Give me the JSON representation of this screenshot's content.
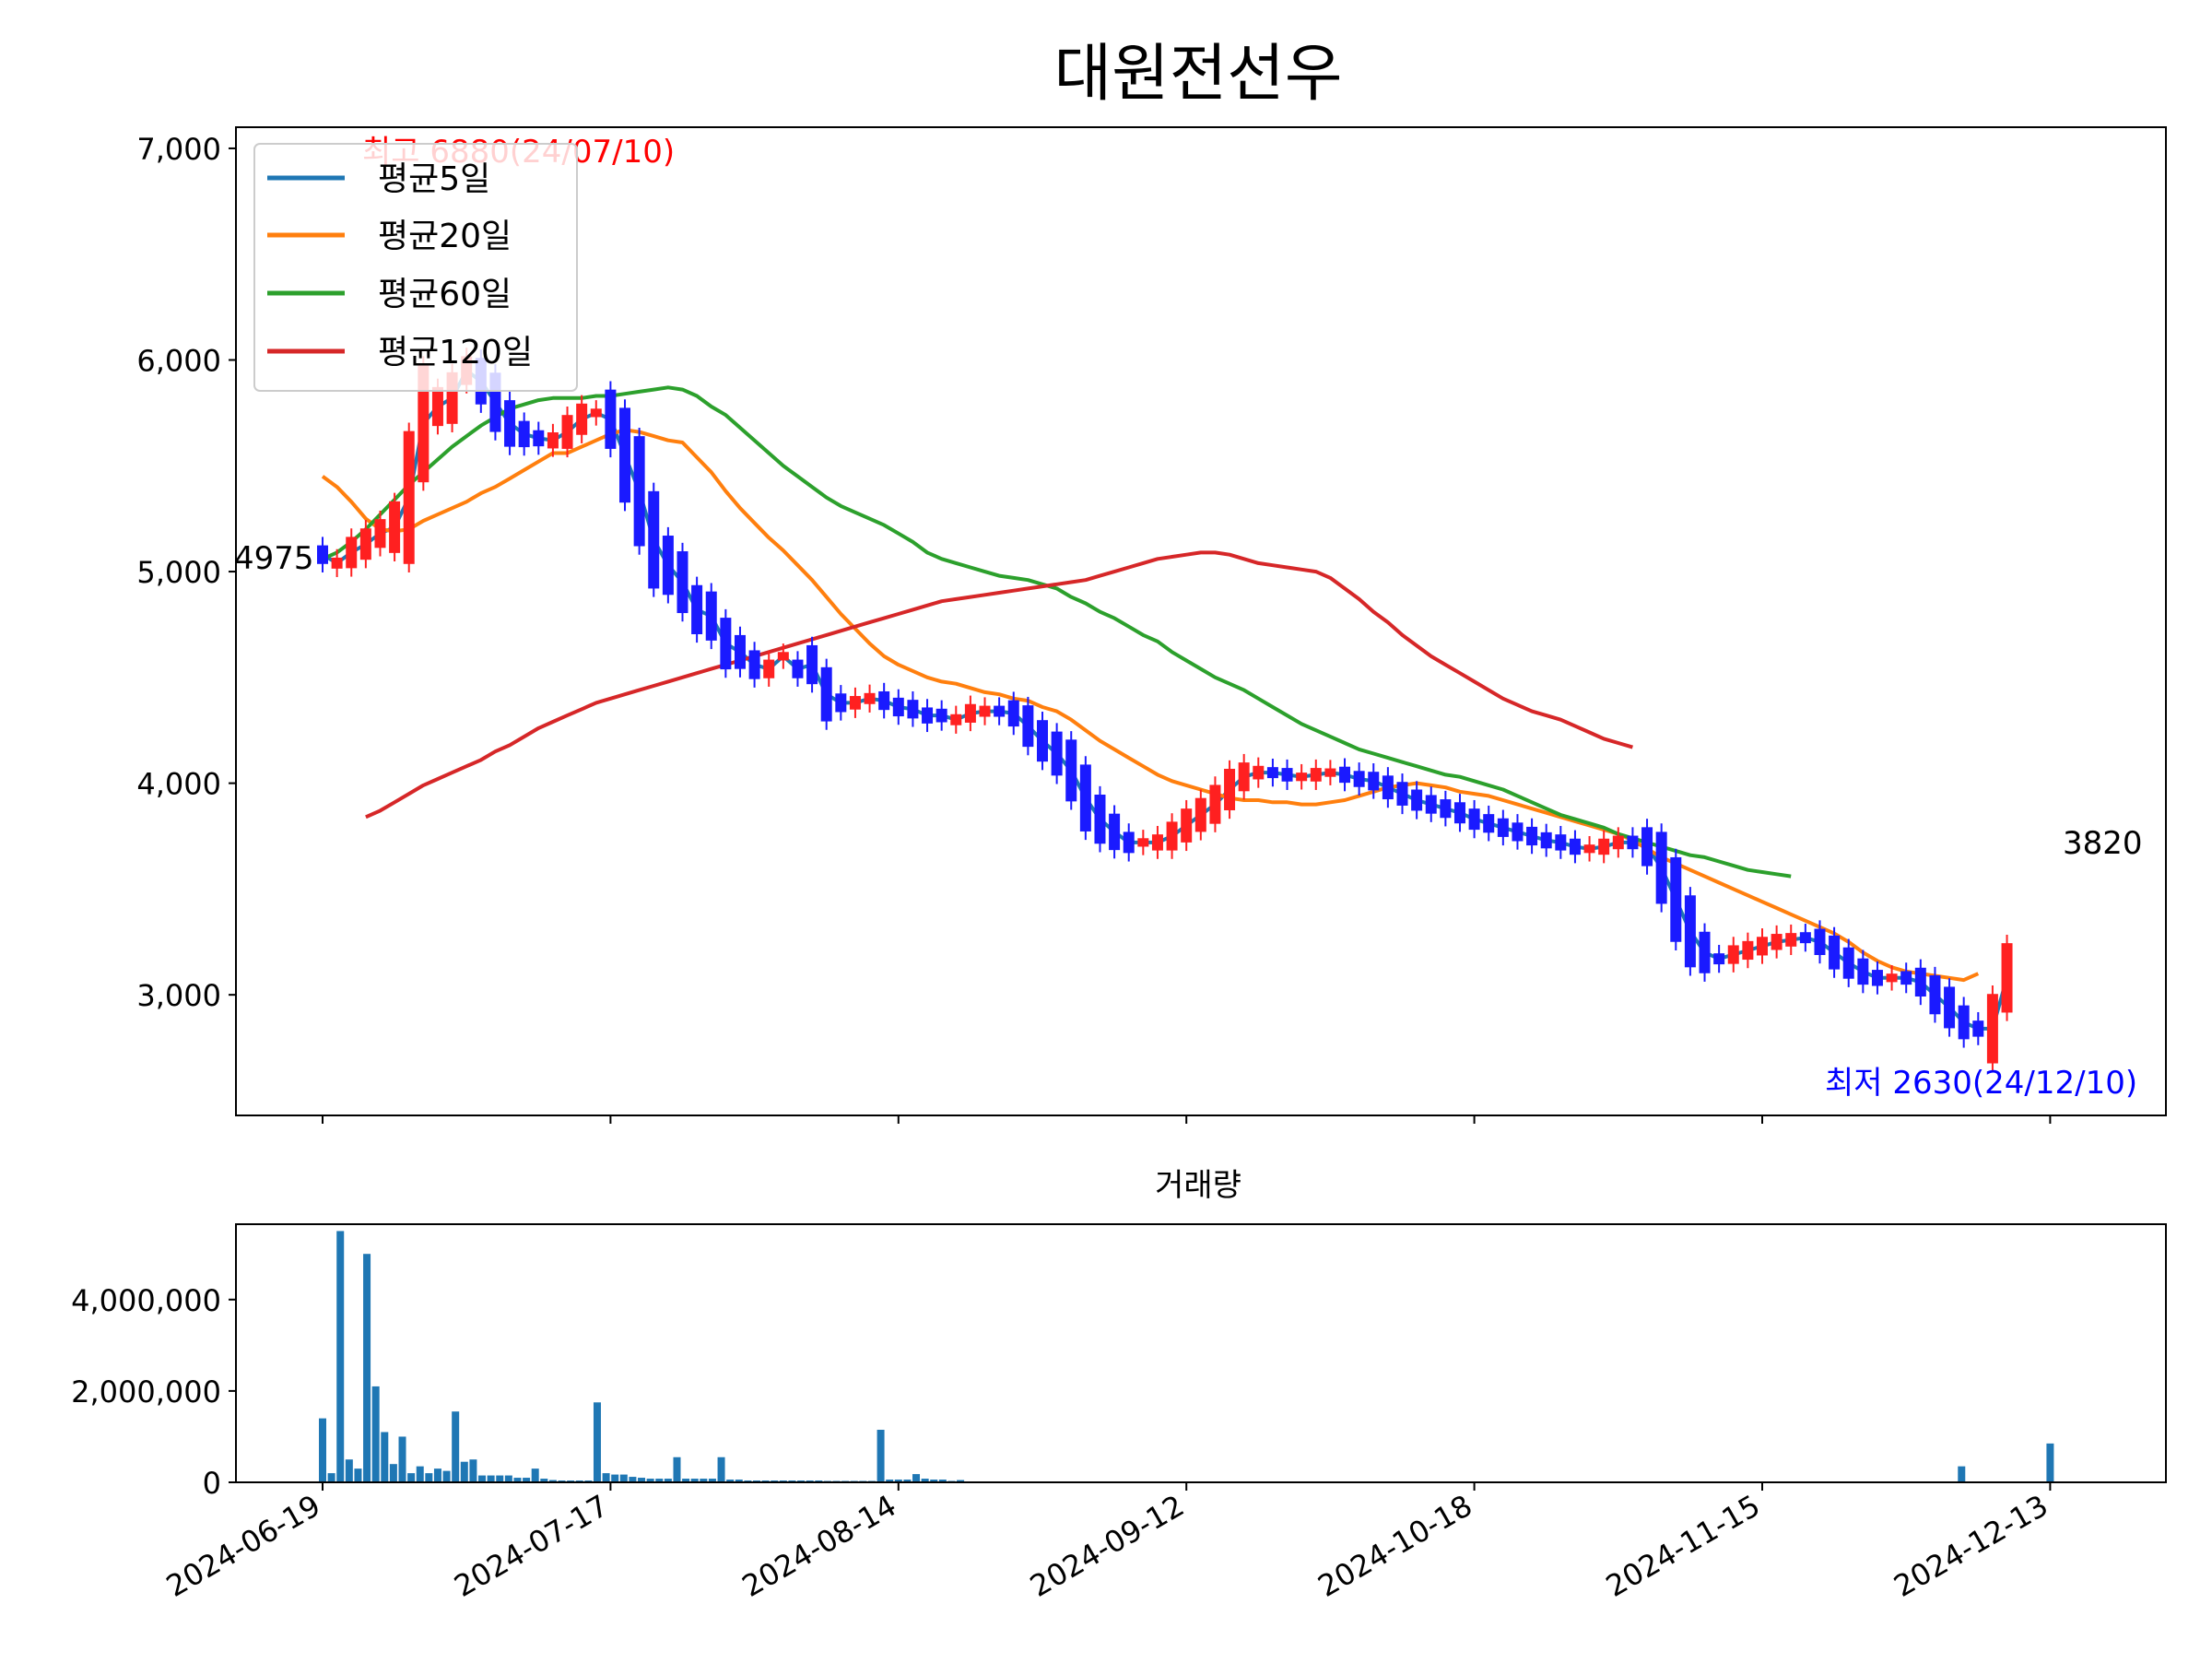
{
  "chart_data": [
    {
      "type": "candlestick",
      "title": "대원전선우",
      "ylim": [
        2430,
        7100
      ],
      "y_ticks": [
        3000,
        4000,
        5000,
        6000,
        7000
      ],
      "y_tick_labels": [
        "3,000",
        "4,000",
        "5,000",
        "6,000",
        "7,000"
      ],
      "x_ticks": [
        0,
        20,
        40,
        60,
        80,
        100,
        120
      ],
      "x_tick_labels": [
        "2024-06-19",
        "2024-07-17",
        "2024-08-14",
        "2024-09-12",
        "2024-10-18",
        "2024-11-15",
        "2024-12-13"
      ],
      "grid": false,
      "legend_position": "upper-left",
      "up_color": "#ff2020",
      "down_color": "#1a1aff",
      "series": [
        {
          "name": "평균5일",
          "color": "#1f77b4",
          "start_index": 0,
          "values": [
            5080,
            5040,
            5090,
            5130,
            5180,
            5210,
            5350,
            5700,
            5780,
            5820,
            5950,
            5900,
            5800,
            5700,
            5650,
            5630,
            5620,
            5660,
            5720,
            5750,
            5720,
            5550,
            5380,
            5150,
            5030,
            4950,
            4820,
            4790,
            4660,
            4620,
            4560,
            4540,
            4600,
            4540,
            4560,
            4420,
            4380,
            4380,
            4400,
            4390,
            4360,
            4350,
            4320,
            4320,
            4300,
            4330,
            4340,
            4340,
            4330,
            4270,
            4200,
            4140,
            4060,
            3930,
            3830,
            3770,
            3720,
            3720,
            3720,
            3750,
            3800,
            3850,
            3900,
            3970,
            4030,
            4050,
            4050,
            4040,
            4030,
            4040,
            4050,
            4040,
            4020,
            4010,
            3980,
            3950,
            3920,
            3900,
            3880,
            3860,
            3830,
            3810,
            3790,
            3770,
            3750,
            3730,
            3720,
            3700,
            3690,
            3700,
            3720,
            3720,
            3700,
            3600,
            3450,
            3300,
            3200,
            3170,
            3190,
            3210,
            3230,
            3250,
            3260,
            3270,
            3250,
            3200,
            3150,
            3110,
            3080,
            3080,
            3080,
            3060,
            3000,
            2940,
            2870,
            2840,
            2840,
            3080
          ]
        },
        {
          "name": "평균20일",
          "color": "#ff7f0e",
          "start_index": 0,
          "values": [
            5450,
            5400,
            5330,
            5250,
            5200,
            5190,
            5200,
            5240,
            5270,
            5300,
            5330,
            5370,
            5400,
            5440,
            5480,
            5520,
            5560,
            5560,
            5590,
            5620,
            5650,
            5670,
            5660,
            5640,
            5620,
            5610,
            5540,
            5470,
            5380,
            5300,
            5230,
            5160,
            5100,
            5030,
            4960,
            4880,
            4800,
            4730,
            4660,
            4600,
            4560,
            4530,
            4500,
            4480,
            4470,
            4450,
            4430,
            4420,
            4400,
            4390,
            4360,
            4340,
            4300,
            4250,
            4200,
            4160,
            4120,
            4080,
            4040,
            4010,
            3990,
            3970,
            3950,
            3930,
            3920,
            3920,
            3910,
            3910,
            3900,
            3900,
            3910,
            3920,
            3940,
            3960,
            3980,
            3990,
            4000,
            3990,
            3980,
            3960,
            3950,
            3940,
            3920,
            3900,
            3880,
            3860,
            3840,
            3820,
            3800,
            3780,
            3760,
            3730,
            3690,
            3650,
            3620,
            3590,
            3560,
            3530,
            3500,
            3470,
            3440,
            3410,
            3380,
            3350,
            3320,
            3290,
            3250,
            3200,
            3160,
            3130,
            3110,
            3100,
            3090,
            3080,
            3070,
            3100
          ]
        },
        {
          "name": "평균60일",
          "color": "#2ca02c",
          "start_index": 0,
          "values": [
            5060,
            5090,
            5140,
            5200,
            5270,
            5340,
            5410,
            5470,
            5530,
            5590,
            5640,
            5690,
            5730,
            5770,
            5790,
            5810,
            5820,
            5820,
            5820,
            5830,
            5830,
            5840,
            5850,
            5860,
            5870,
            5860,
            5830,
            5780,
            5740,
            5680,
            5620,
            5560,
            5500,
            5450,
            5400,
            5350,
            5310,
            5280,
            5250,
            5220,
            5180,
            5140,
            5090,
            5060,
            5040,
            5020,
            5000,
            4980,
            4970,
            4960,
            4940,
            4920,
            4880,
            4850,
            4810,
            4780,
            4740,
            4700,
            4670,
            4620,
            4580,
            4540,
            4500,
            4470,
            4440,
            4400,
            4360,
            4320,
            4280,
            4250,
            4220,
            4190,
            4160,
            4140,
            4120,
            4100,
            4080,
            4060,
            4040,
            4030,
            4010,
            3990,
            3970,
            3940,
            3910,
            3880,
            3850,
            3830,
            3810,
            3790,
            3760,
            3740,
            3720,
            3700,
            3680,
            3660,
            3650,
            3630,
            3610,
            3590,
            3580,
            3570,
            3560
          ]
        },
        {
          "name": "평균120일",
          "color": "#d62728",
          "start_index": 3,
          "values": [
            3840,
            3870,
            3910,
            3950,
            3990,
            4020,
            4050,
            4080,
            4110,
            4150,
            4180,
            4220,
            4260,
            4290,
            4320,
            4350,
            4380,
            4400,
            4420,
            4440,
            4460,
            4480,
            4500,
            4520,
            4540,
            4560,
            4580,
            4600,
            4620,
            4640,
            4660,
            4680,
            4700,
            4720,
            4740,
            4760,
            4780,
            4800,
            4820,
            4840,
            4860,
            4870,
            4880,
            4890,
            4900,
            4910,
            4920,
            4930,
            4940,
            4950,
            4960,
            4980,
            5000,
            5020,
            5040,
            5060,
            5070,
            5080,
            5090,
            5090,
            5080,
            5060,
            5040,
            5030,
            5020,
            5010,
            5000,
            4970,
            4920,
            4870,
            4810,
            4760,
            4700,
            4650,
            4600,
            4560,
            4520,
            4480,
            4440,
            4400,
            4370,
            4340,
            4320,
            4300,
            4270,
            4240,
            4210,
            4190,
            4170
          ]
        }
      ],
      "annotations": {
        "high": "최고 6880(24/07/10)",
        "low": "최저 2630(24/12/10)",
        "first_close": "4975",
        "last_close": "3820"
      }
    },
    {
      "type": "bar",
      "title": "거래량",
      "ylim": [
        0,
        5650000
      ],
      "y_ticks": [
        0,
        2000000,
        4000000
      ],
      "y_tick_labels": [
        "0",
        "2,000,000",
        "4,000,000"
      ],
      "x_ticks": [
        0,
        20,
        40,
        60,
        80,
        100,
        120
      ],
      "x_tick_labels": [
        "2024-06-19",
        "2024-07-17",
        "2024-08-14",
        "2024-09-12",
        "2024-10-18",
        "2024-11-15",
        "2024-12-13"
      ],
      "bar_color": "#1f77b4",
      "values": [
        1400000,
        200000,
        5500000,
        500000,
        300000,
        5000000,
        2100000,
        1100000,
        400000,
        1000000,
        200000,
        350000,
        200000,
        300000,
        250000,
        1550000,
        450000,
        500000,
        150000,
        150000,
        150000,
        150000,
        100000,
        100000,
        300000,
        80000,
        50000,
        40000,
        40000,
        40000,
        40000,
        1750000,
        200000,
        170000,
        170000,
        120000,
        100000,
        80000,
        80000,
        80000,
        550000,
        80000,
        80000,
        80000,
        80000,
        550000,
        60000,
        60000,
        40000,
        40000,
        40000,
        40000,
        40000,
        40000,
        40000,
        40000,
        40000,
        30000,
        30000,
        30000,
        30000,
        30000,
        30000,
        1150000,
        60000,
        60000,
        60000,
        180000,
        80000,
        60000,
        60000,
        30000,
        50000,
        20000,
        20000,
        20000,
        20000,
        20000,
        20000,
        20000,
        20000,
        20000,
        20000,
        20000,
        20000,
        20000,
        20000,
        20000,
        20000,
        20000,
        20000,
        20000,
        20000,
        20000,
        20000,
        20000,
        20000,
        20000,
        20000,
        20000,
        20000,
        20000,
        20000,
        20000,
        20000,
        20000,
        20000,
        20000,
        20000,
        20000,
        20000,
        20000,
        20000,
        20000,
        20000,
        20000,
        20000,
        20000,
        20000,
        20000,
        20000,
        20000,
        20000,
        20000,
        20000,
        20000,
        20000,
        20000,
        20000,
        20000,
        20000,
        20000,
        20000,
        20000,
        20000,
        20000,
        20000,
        20000,
        20000,
        20000,
        20000,
        20000,
        20000,
        20000,
        20000,
        20000,
        20000,
        20000,
        20000,
        20000,
        20000,
        20000,
        20000,
        20000,
        20000,
        20000,
        20000,
        20000,
        20000,
        20000,
        20000,
        20000,
        20000,
        20000,
        20000,
        20000,
        20000,
        20000,
        20000,
        20000,
        20000,
        20000,
        20000,
        20000,
        20000,
        20000,
        20000,
        20000,
        20000,
        20000,
        20000,
        20000,
        20000,
        20000,
        20000,
        350000,
        20000,
        20000,
        20000,
        20000,
        20000,
        20000,
        20000,
        20000,
        20000,
        850000
      ]
    }
  ]
}
